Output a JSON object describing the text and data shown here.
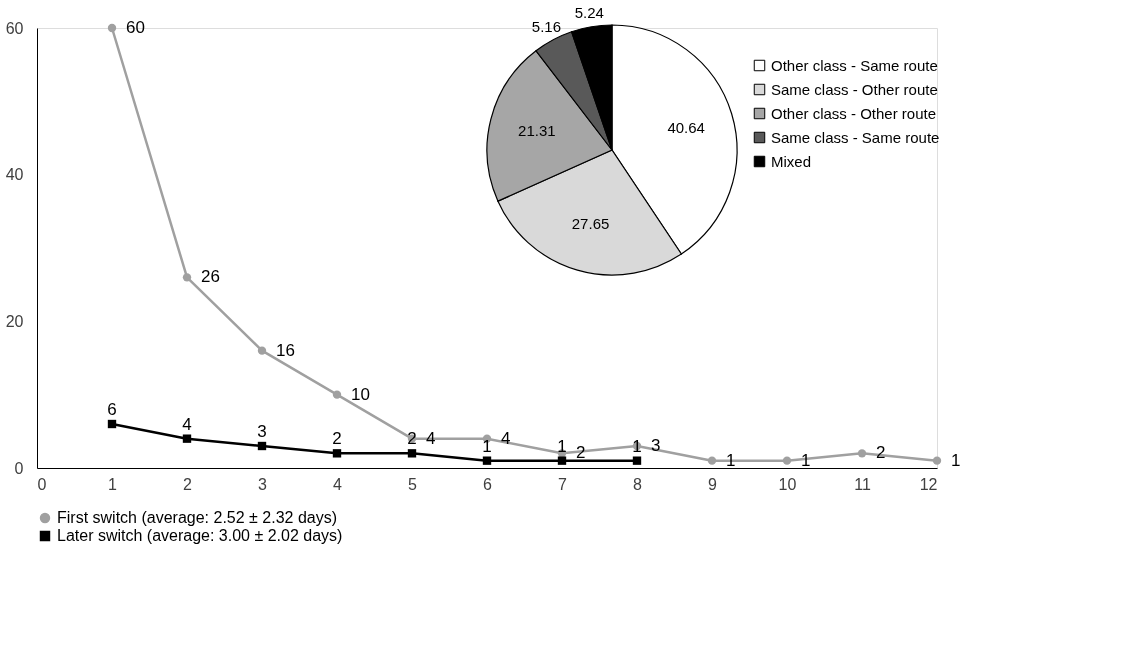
{
  "chart_data": [
    {
      "type": "line",
      "x": [
        1,
        2,
        3,
        4,
        5,
        6,
        7,
        8,
        9,
        10,
        11,
        12
      ],
      "xlim": [
        0,
        12
      ],
      "xticks": [
        0,
        1,
        2,
        3,
        4,
        5,
        6,
        7,
        8,
        9,
        10,
        11,
        12
      ],
      "ylim": [
        0,
        60
      ],
      "yticks": [
        0,
        20,
        40,
        60
      ],
      "grid": false,
      "legend": "bottom",
      "data_labels": true,
      "line_style": "solid",
      "series": [
        {
          "name": "First switch (average: 2.52 ± 2.32 days)",
          "color": "#a0a0a0",
          "marker": "circle",
          "values": [
            60,
            26,
            16,
            10,
            4,
            4,
            2,
            3,
            1,
            1,
            2,
            1
          ]
        },
        {
          "name": "Later switch (average: 3.00 ± 2.02 days)",
          "color": "#000000",
          "marker": "square",
          "x": [
            1,
            2,
            3,
            4,
            5,
            6,
            7,
            8
          ],
          "values": [
            6,
            4,
            3,
            2,
            2,
            1,
            1,
            1
          ]
        }
      ]
    },
    {
      "type": "pie",
      "categories": [
        "Other class - Same route",
        "Same class - Other route",
        "Other class - Other route",
        "Same class - Same route",
        "Mixed"
      ],
      "values": [
        40.64,
        27.65,
        21.31,
        5.16,
        5.24
      ],
      "colors": [
        "#ffffff",
        "#d9d9d9",
        "#a6a6a6",
        "#595959",
        "#000000"
      ],
      "data_labels": true,
      "legend": "right"
    }
  ]
}
